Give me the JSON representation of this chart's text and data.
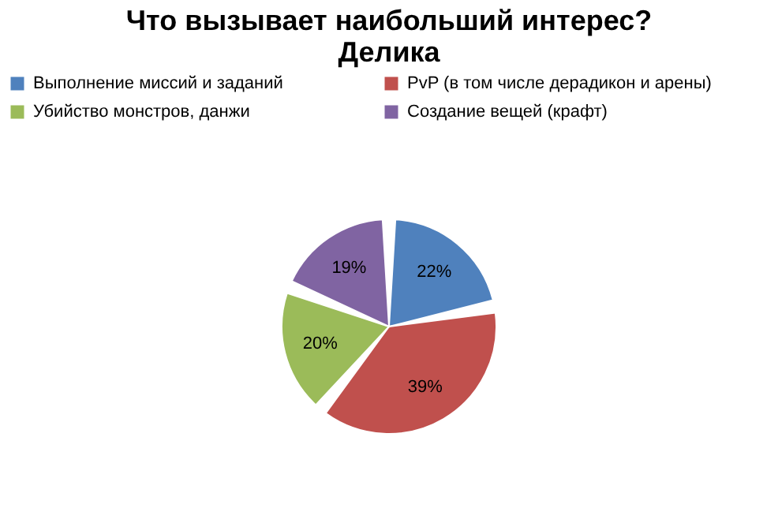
{
  "chart_data": {
    "type": "pie",
    "title": "Что вызывает наибольший интерес? Делика",
    "categories": [
      "Выполнение миссий и заданий",
      "PvP (в том числе дерадикон и арены)",
      "Убийство монстров, данжи",
      "Создание вещей (крафт)"
    ],
    "values": [
      22,
      39,
      20,
      19
    ],
    "value_labels": [
      "22%",
      "39%",
      "20%",
      "19%"
    ],
    "colors": [
      "#4f81bd",
      "#c0504d",
      "#9bbb59",
      "#8064a2"
    ],
    "legend": "top"
  }
}
